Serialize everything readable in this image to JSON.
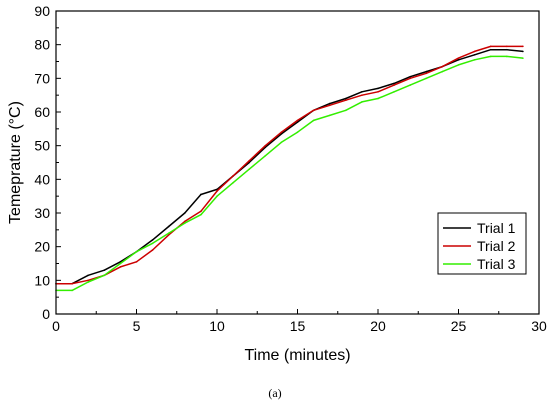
{
  "caption": "(a)",
  "chart_data": {
    "type": "line",
    "title": "",
    "xlabel": "Time (minutes)",
    "ylabel": "Temeprature (°C)",
    "xlim": [
      0,
      30
    ],
    "ylim": [
      0,
      90
    ],
    "xticks": [
      0,
      5,
      10,
      15,
      20,
      25,
      30
    ],
    "yticks": [
      0,
      10,
      20,
      30,
      40,
      50,
      60,
      70,
      80,
      90
    ],
    "grid": false,
    "legend_position": "bottom-right",
    "series": [
      {
        "name": "Trial 1",
        "color": "#000000",
        "x": [
          0,
          1,
          2,
          3,
          4,
          5,
          6,
          7,
          8,
          9,
          10,
          11,
          12,
          13,
          14,
          15,
          16,
          17,
          18,
          19,
          20,
          21,
          22,
          23,
          24,
          25,
          26,
          27,
          28,
          29
        ],
        "y": [
          9,
          9,
          11.5,
          13,
          15.5,
          18.5,
          22,
          26,
          30,
          35.5,
          37,
          41,
          45,
          49.5,
          53.5,
          57,
          60.5,
          62.5,
          64,
          66,
          67,
          68.5,
          70.5,
          72,
          73.5,
          75.5,
          77,
          78.5,
          78.5,
          78
        ]
      },
      {
        "name": "Trial 2",
        "color": "#cc0000",
        "x": [
          0,
          1,
          2,
          3,
          4,
          5,
          6,
          7,
          8,
          9,
          10,
          11,
          12,
          13,
          14,
          15,
          16,
          17,
          18,
          19,
          20,
          21,
          22,
          23,
          24,
          25,
          26,
          27,
          28,
          29
        ],
        "y": [
          9,
          9,
          10,
          11.5,
          14,
          15.5,
          19,
          23.5,
          27.5,
          30.5,
          36.5,
          41,
          45.5,
          50,
          54,
          57.5,
          60.5,
          62,
          63.5,
          65,
          66,
          68,
          70,
          71.5,
          73.5,
          76,
          78,
          79.5,
          79.5,
          79.5
        ]
      },
      {
        "name": "Trial 3",
        "color": "#33ee00",
        "x": [
          0,
          1,
          2,
          3,
          4,
          5,
          6,
          7,
          8,
          9,
          10,
          11,
          12,
          13,
          14,
          15,
          16,
          17,
          18,
          19,
          20,
          21,
          22,
          23,
          24,
          25,
          26,
          27,
          28,
          29
        ],
        "y": [
          7,
          7,
          9.5,
          11.5,
          15,
          18.5,
          21,
          24,
          27,
          29.5,
          35,
          39,
          43,
          47,
          51,
          54,
          57.5,
          59,
          60.5,
          63,
          64,
          66,
          68,
          70,
          72,
          74,
          75.5,
          76.5,
          76.5,
          76
        ]
      }
    ]
  }
}
